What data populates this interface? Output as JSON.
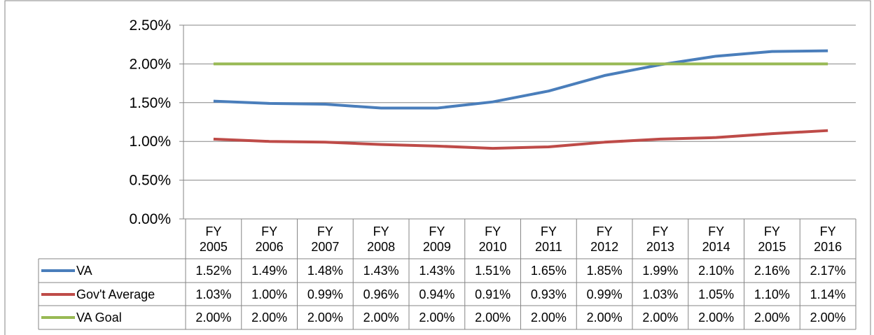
{
  "chart_data": {
    "type": "line",
    "categories": [
      "FY\n2005",
      "FY\n2006",
      "FY\n2007",
      "FY\n2008",
      "FY\n2009",
      "FY\n2010",
      "FY\n2011",
      "FY\n2012",
      "FY\n2013",
      "FY\n2014",
      "FY\n2015",
      "FY\n2016"
    ],
    "series": [
      {
        "name": "VA",
        "color": "#4a7ebb",
        "values": [
          1.52,
          1.49,
          1.48,
          1.43,
          1.43,
          1.51,
          1.65,
          1.85,
          1.99,
          2.1,
          2.16,
          2.17
        ],
        "value_labels": [
          "1.52%",
          "1.49%",
          "1.48%",
          "1.43%",
          "1.43%",
          "1.51%",
          "1.65%",
          "1.85%",
          "1.99%",
          "2.10%",
          "2.16%",
          "2.17%"
        ]
      },
      {
        "name": "Gov't Average",
        "color": "#be4b48",
        "values": [
          1.03,
          1.0,
          0.99,
          0.96,
          0.94,
          0.91,
          0.93,
          0.99,
          1.03,
          1.05,
          1.1,
          1.14
        ],
        "value_labels": [
          "1.03%",
          "1.00%",
          "0.99%",
          "0.96%",
          "0.94%",
          "0.91%",
          "0.93%",
          "0.99%",
          "1.03%",
          "1.05%",
          "1.10%",
          "1.14%"
        ]
      },
      {
        "name": "VA Goal",
        "color": "#98b954",
        "values": [
          2.0,
          2.0,
          2.0,
          2.0,
          2.0,
          2.0,
          2.0,
          2.0,
          2.0,
          2.0,
          2.0,
          2.0
        ],
        "value_labels": [
          "2.00%",
          "2.00%",
          "2.00%",
          "2.00%",
          "2.00%",
          "2.00%",
          "2.00%",
          "2.00%",
          "2.00%",
          "2.00%",
          "2.00%",
          "2.00%"
        ]
      }
    ],
    "ylim": [
      0,
      2.5
    ],
    "yticks": [
      {
        "value": 0,
        "label": "0.00%"
      },
      {
        "value": 0.5,
        "label": "0.50%"
      },
      {
        "value": 1,
        "label": "1.00%"
      },
      {
        "value": 1.5,
        "label": "1.50%"
      },
      {
        "value": 2,
        "label": "2.00%"
      },
      {
        "value": 2.5,
        "label": "2.50%"
      }
    ],
    "grid": true
  }
}
